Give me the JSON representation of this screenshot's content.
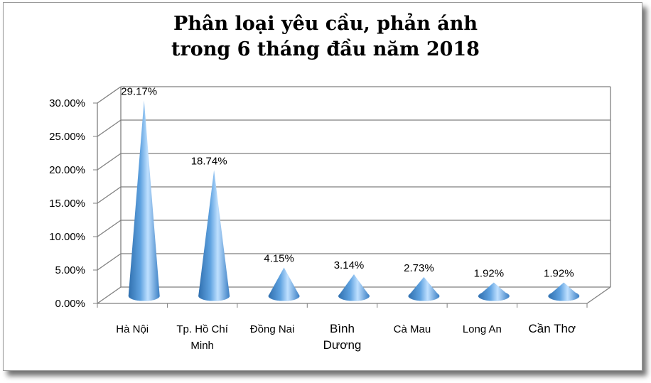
{
  "chart_data": {
    "type": "bar",
    "bar_shape": "3d-cone",
    "title_lines": [
      "Phân loại yêu cầu, phản ánh",
      "trong 6 tháng đầu năm 2018"
    ],
    "categories": [
      [
        "Hà Nội"
      ],
      [
        "Tp. Hồ Chí",
        "Minh"
      ],
      [
        "Đồng Nai"
      ],
      [
        "Bình",
        "Dương"
      ],
      [
        "Cà Mau"
      ],
      [
        "Long An"
      ],
      [
        "Cần Thơ"
      ]
    ],
    "categories_large_font": [
      false,
      false,
      false,
      true,
      false,
      false,
      true
    ],
    "values": [
      29.17,
      18.74,
      4.15,
      3.14,
      2.73,
      1.92,
      1.92
    ],
    "data_labels": [
      "29.17%",
      "18.74%",
      "4.15%",
      "3.14%",
      "2.73%",
      "1.92%",
      "1.92%"
    ],
    "y_ticks": [
      "0.00%",
      "5.00%",
      "10.00%",
      "15.00%",
      "20.00%",
      "25.00%",
      "30.00%"
    ],
    "ylim": [
      0,
      30
    ],
    "grid": true,
    "legend": "none",
    "colors": {
      "cone_dark": "#2f6fae",
      "cone_mid": "#5fa2e0",
      "cone_light": "#bfe0ff",
      "grid": "#7f7f7f"
    }
  }
}
